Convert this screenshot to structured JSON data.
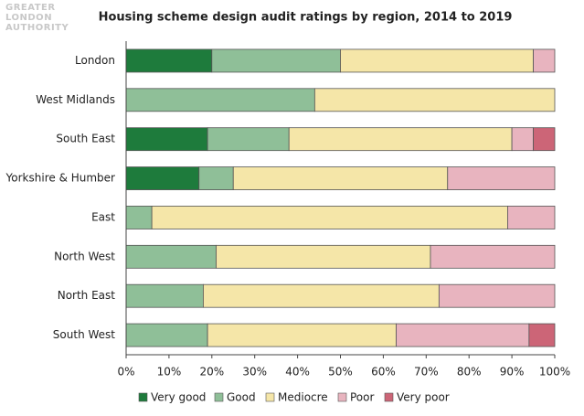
{
  "logo": [
    "GREATER",
    "LONDON",
    "AUTHORITY"
  ],
  "chart_data": {
    "type": "stacked-bar-horizontal",
    "title": "Housing scheme design audit ratings by region, 2014 to 2019",
    "categories": [
      "London",
      "West Midlands",
      "South East",
      "Yorkshire & Humber",
      "East",
      "North West",
      "North East",
      "South West"
    ],
    "series": [
      {
        "name": "Very good",
        "color": "#1e7b3c",
        "values": [
          20,
          0,
          19,
          17,
          0,
          0,
          0,
          0
        ]
      },
      {
        "name": "Good",
        "color": "#8fbf98",
        "values": [
          30,
          44,
          19,
          8,
          6,
          21,
          18,
          19
        ]
      },
      {
        "name": "Mediocre",
        "color": "#f5e6a8",
        "values": [
          45,
          56,
          52,
          50,
          83,
          50,
          55,
          44
        ]
      },
      {
        "name": "Poor",
        "color": "#e8b4bf",
        "values": [
          5,
          0,
          5,
          25,
          11,
          29,
          27,
          31
        ]
      },
      {
        "name": "Very poor",
        "color": "#cc6577",
        "values": [
          0,
          0,
          5,
          0,
          0,
          0,
          0,
          6
        ]
      }
    ],
    "xlim": [
      0,
      100
    ],
    "xticks": [
      {
        "value": 0,
        "label": "0%"
      },
      {
        "value": 10,
        "label": "10%"
      },
      {
        "value": 20,
        "label": "20%"
      },
      {
        "value": 30,
        "label": "30%"
      },
      {
        "value": 40,
        "label": "40%"
      },
      {
        "value": 50,
        "label": "50%"
      },
      {
        "value": 60,
        "label": "60%"
      },
      {
        "value": 70,
        "label": "70%"
      },
      {
        "value": 80,
        "label": "80%"
      },
      {
        "value": 90,
        "label": "90%"
      },
      {
        "value": 100,
        "label": "100%"
      }
    ],
    "legend": "bottom"
  }
}
